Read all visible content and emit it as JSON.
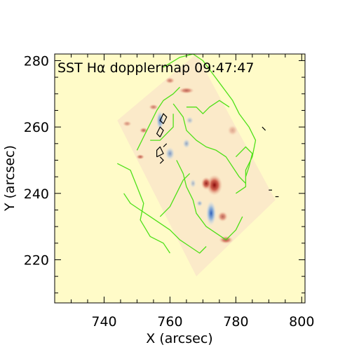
{
  "chart_data": {
    "type": "heatmap",
    "title": "SST Hα dopplermap 09:47:47",
    "xlabel": "X (arcsec)",
    "ylabel": "Y (arcsec)",
    "xlim": [
      725,
      801
    ],
    "ylim": [
      207,
      282
    ],
    "x_ticks": [
      "740",
      "760",
      "780",
      "800"
    ],
    "x_tick_values": [
      740,
      760,
      780,
      800
    ],
    "y_ticks": [
      "220",
      "240",
      "260",
      "280"
    ],
    "y_tick_values": [
      220,
      240,
      260,
      280
    ],
    "grid": false,
    "colors": {
      "background": "#fffbc8",
      "field_of_view": "#fbeac9",
      "redshift": "#9c1010",
      "blueshift": "#3a74c8",
      "contour_green": "#4fe018",
      "contour_black": "#000000"
    },
    "field_of_view_corners": [
      [
        744,
        262
      ],
      [
        768,
        282
      ],
      [
        792,
        238
      ],
      [
        768,
        215
      ]
    ],
    "features": [
      {
        "kind": "red",
        "x": 773.5,
        "y": 242.5,
        "rx": 2.5,
        "ry": 3.2,
        "strength": 1.0
      },
      {
        "kind": "red",
        "x": 771,
        "y": 243,
        "rx": 1.6,
        "ry": 2.0,
        "strength": 0.9
      },
      {
        "kind": "red",
        "x": 776,
        "y": 233,
        "rx": 1.6,
        "ry": 1.6,
        "strength": 0.6
      },
      {
        "kind": "red",
        "x": 777,
        "y": 226,
        "rx": 2.2,
        "ry": 1.2,
        "strength": 0.7
      },
      {
        "kind": "red",
        "x": 765,
        "y": 271,
        "rx": 2.4,
        "ry": 1.0,
        "strength": 0.6
      },
      {
        "kind": "red",
        "x": 760,
        "y": 274,
        "rx": 1.5,
        "ry": 1.0,
        "strength": 0.5
      },
      {
        "kind": "red",
        "x": 755,
        "y": 266,
        "rx": 1.5,
        "ry": 0.9,
        "strength": 0.5
      },
      {
        "kind": "red",
        "x": 752,
        "y": 259,
        "rx": 1.3,
        "ry": 0.9,
        "strength": 0.6
      },
      {
        "kind": "red",
        "x": 751,
        "y": 251,
        "rx": 1.3,
        "ry": 0.8,
        "strength": 0.6
      },
      {
        "kind": "red",
        "x": 747,
        "y": 261,
        "rx": 1.4,
        "ry": 0.9,
        "strength": 0.4
      },
      {
        "kind": "red",
        "x": 779,
        "y": 259,
        "rx": 1.6,
        "ry": 1.6,
        "strength": 0.3
      },
      {
        "kind": "blue",
        "x": 772.5,
        "y": 234,
        "rx": 1.6,
        "ry": 3.8,
        "strength": 1.0
      },
      {
        "kind": "blue",
        "x": 757,
        "y": 262,
        "rx": 1.2,
        "ry": 3.0,
        "strength": 0.8
      },
      {
        "kind": "blue",
        "x": 760,
        "y": 252,
        "rx": 1.5,
        "ry": 2.0,
        "strength": 0.6
      },
      {
        "kind": "blue",
        "x": 765,
        "y": 255,
        "rx": 1.2,
        "ry": 1.5,
        "strength": 0.5
      },
      {
        "kind": "blue",
        "x": 767,
        "y": 243,
        "rx": 1.0,
        "ry": 1.4,
        "strength": 0.4
      },
      {
        "kind": "blue",
        "x": 769,
        "y": 237,
        "rx": 1.0,
        "ry": 1.0,
        "strength": 0.5
      },
      {
        "kind": "blue",
        "x": 766,
        "y": 262,
        "rx": 1.2,
        "ry": 1.2,
        "strength": 0.4
      }
    ],
    "green_contours": [
      [
        [
          744,
          249
        ],
        [
          748,
          247
        ],
        [
          750,
          242
        ],
        [
          752,
          237
        ],
        [
          751,
          232
        ],
        [
          754,
          227
        ],
        [
          758,
          225
        ],
        [
          760,
          222
        ]
      ],
      [
        [
          750,
          253
        ],
        [
          752,
          257
        ],
        [
          754,
          261
        ],
        [
          756,
          265
        ],
        [
          758,
          268
        ],
        [
          761,
          270
        ],
        [
          763,
          272
        ]
      ],
      [
        [
          758,
          278
        ],
        [
          763,
          281
        ],
        [
          767,
          282
        ],
        [
          770,
          280
        ],
        [
          773,
          276
        ],
        [
          776,
          272
        ],
        [
          779,
          268
        ],
        [
          781,
          264
        ],
        [
          784,
          260
        ],
        [
          786,
          256
        ],
        [
          785,
          251
        ],
        [
          783,
          247
        ],
        [
          783,
          242
        ],
        [
          780,
          240
        ]
      ],
      [
        [
          761,
          267
        ],
        [
          764,
          263
        ],
        [
          765,
          259
        ],
        [
          768,
          256
        ],
        [
          771,
          254
        ],
        [
          774,
          253
        ],
        [
          777,
          251
        ],
        [
          779,
          248
        ],
        [
          781,
          245
        ],
        [
          783,
          243
        ]
      ],
      [
        [
          762,
          250
        ],
        [
          764,
          246
        ],
        [
          765,
          242
        ],
        [
          767,
          238
        ],
        [
          768,
          234
        ],
        [
          771,
          230
        ],
        [
          774,
          228
        ],
        [
          777,
          226
        ],
        [
          780,
          229
        ],
        [
          782,
          233
        ]
      ],
      [
        [
          757,
          233
        ],
        [
          760,
          236
        ],
        [
          762,
          240
        ],
        [
          764,
          244
        ],
        [
          766,
          246
        ]
      ],
      [
        [
          754,
          256
        ],
        [
          757,
          256
        ],
        [
          759,
          258
        ],
        [
          761,
          260
        ],
        [
          761,
          264
        ]
      ],
      [
        [
          765,
          266
        ],
        [
          768,
          266
        ],
        [
          770,
          264
        ],
        [
          772,
          266
        ],
        [
          775,
          268
        ],
        [
          778,
          266
        ]
      ],
      [
        [
          780,
          251
        ],
        [
          783,
          254
        ],
        [
          785,
          252
        ],
        [
          784,
          248
        ],
        [
          783,
          245
        ]
      ],
      [
        [
          746,
          240
        ],
        [
          748,
          237
        ],
        [
          751,
          235
        ],
        [
          754,
          233
        ],
        [
          757,
          231
        ],
        [
          760,
          229
        ],
        [
          763,
          226
        ],
        [
          766,
          224
        ],
        [
          769,
          222
        ],
        [
          771,
          224
        ]
      ]
    ],
    "black_contours": [
      [
        [
          758,
          261
        ],
        [
          759,
          263
        ],
        [
          758,
          264
        ],
        [
          757,
          262
        ],
        [
          758,
          261
        ]
      ],
      [
        [
          757,
          257
        ],
        [
          758,
          259
        ],
        [
          757,
          260
        ],
        [
          756,
          258
        ],
        [
          757,
          257
        ]
      ],
      [
        [
          756,
          251
        ],
        [
          758,
          252
        ],
        [
          757,
          254
        ],
        [
          756,
          253
        ],
        [
          756,
          251
        ]
      ],
      [
        [
          757,
          249
        ],
        [
          758,
          250
        ],
        [
          757,
          251
        ]
      ],
      [
        [
          758,
          254
        ],
        [
          759,
          255
        ]
      ],
      [
        [
          790,
          241
        ],
        [
          791,
          241
        ]
      ],
      [
        [
          792,
          239
        ],
        [
          793,
          239
        ]
      ],
      [
        [
          788,
          260
        ],
        [
          789,
          259
        ]
      ]
    ]
  }
}
